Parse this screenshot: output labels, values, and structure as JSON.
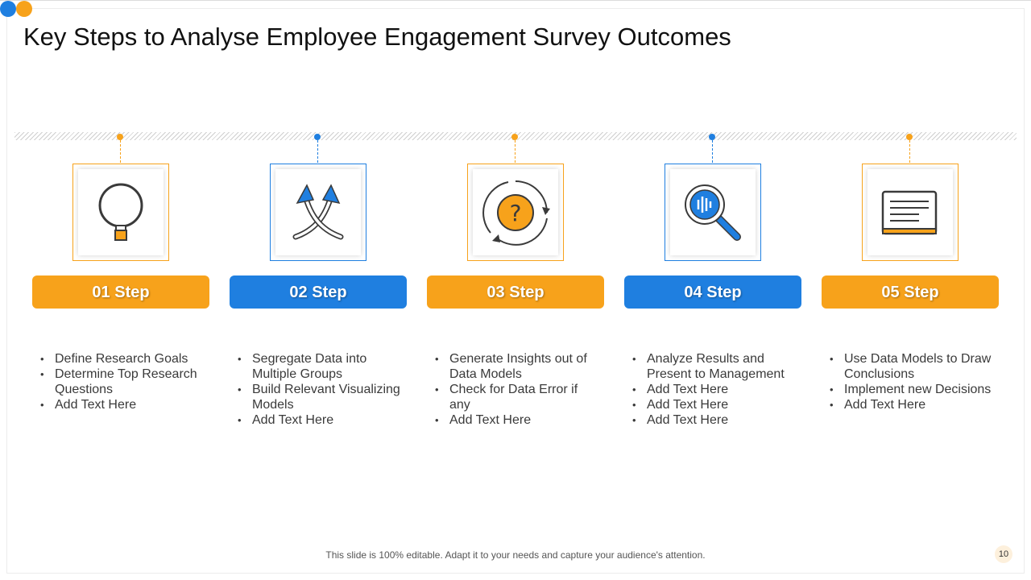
{
  "slide": {
    "title": "Key Steps to Analyse Employee Engagement Survey Outcomes",
    "footer_note": "This slide is 100% editable. Adapt it to your needs and capture your audience's attention.",
    "page_number": "10"
  },
  "colors": {
    "orange": "#f7a21b",
    "blue": "#1f7fe0",
    "orange_light": "#fdf4e8",
    "blue_light": "#e9f2fc"
  },
  "steps": [
    {
      "label": "01 Step",
      "icon": "magnifier-icon",
      "theme": "orange",
      "bullets": [
        "Define Research Goals",
        "Determine Top Research Questions",
        "Add Text Here"
      ]
    },
    {
      "label": "02 Step",
      "icon": "crossed-arrows-icon",
      "theme": "blue",
      "bullets": [
        "Segregate Data into Multiple Groups",
        "Build Relevant Visualizing Models",
        "Add Text Here"
      ]
    },
    {
      "label": "03 Step",
      "icon": "question-cycle-icon",
      "theme": "orange",
      "bullets": [
        "Generate Insights out of Data Models",
        "Check for Data Error if any",
        "Add Text Here"
      ]
    },
    {
      "label": "04 Step",
      "icon": "data-search-icon",
      "theme": "blue",
      "bullets": [
        "Analyze Results and Present to Management",
        "Add Text Here",
        "Add Text Here",
        "Add Text Here"
      ]
    },
    {
      "label": "05 Step",
      "icon": "document-icon",
      "theme": "orange",
      "bullets": [
        "Use Data Models to Draw Conclusions",
        "Implement new Decisions",
        "Add Text Here"
      ]
    }
  ]
}
